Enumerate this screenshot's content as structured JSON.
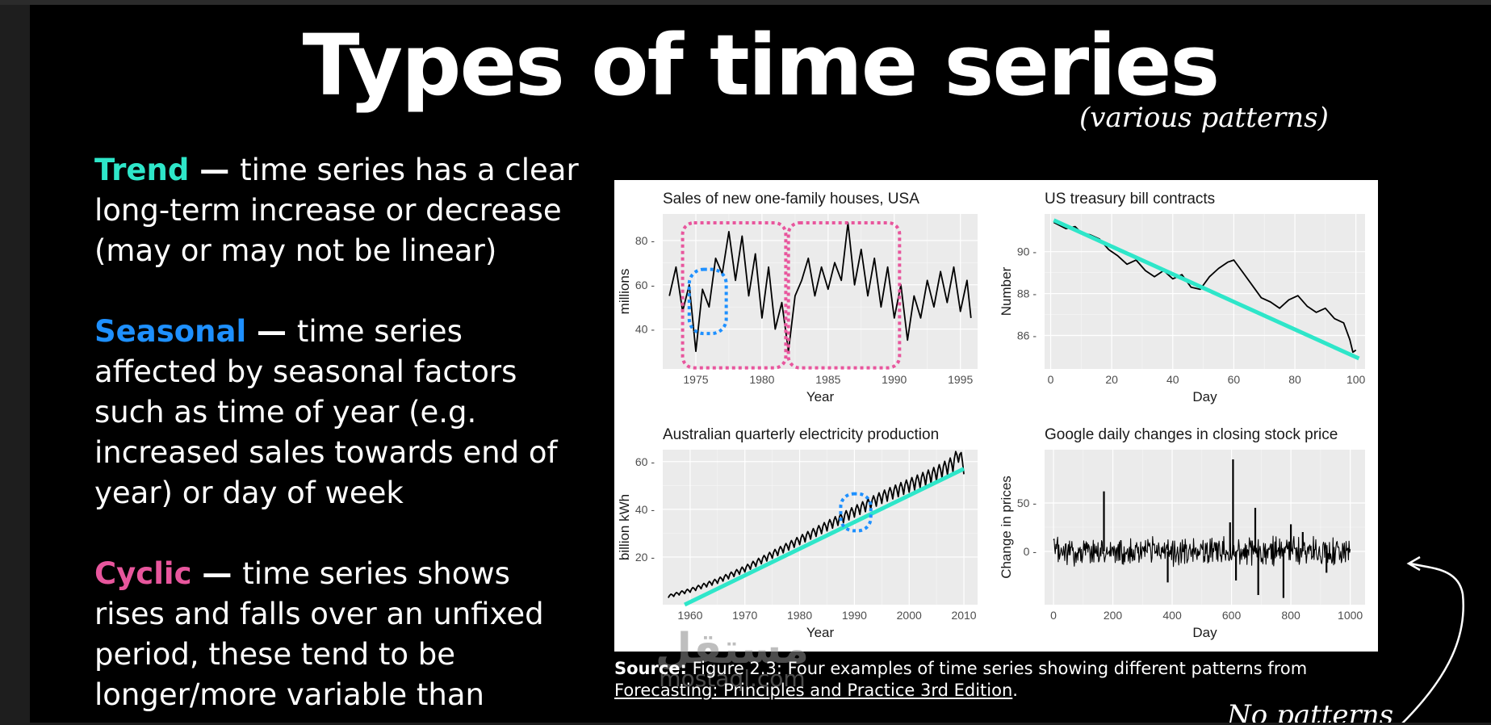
{
  "slide": {
    "title": "Types of time series",
    "subtitle": "(various patterns)",
    "note": "No patterns"
  },
  "text": {
    "trend": {
      "term": "Trend",
      "dash": " — ",
      "desc": "time series has a clear long-term increase or decrease (may or may not be linear)",
      "color": "#2ee6c9"
    },
    "seasonal": {
      "term": "Seasonal",
      "dash": " — ",
      "desc": "time series affected by seasonal factors such as time of year (e.g. increased sales towards end of year) or day of week",
      "color": "#1e90ff"
    },
    "cyclic": {
      "term": "Cyclic",
      "dash": " — ",
      "desc": "time series shows rises and falls over an unfixed period, these tend to be longer/more variable than",
      "color": "#e8569d"
    }
  },
  "caption": {
    "source_label": "Source:",
    "text": " Figure 2.3: Four examples of time series showing different patterns from ",
    "link": "Forecasting: Principles and Practice 3rd Edition",
    "end": "."
  },
  "watermark": {
    "arabic": "مستقل",
    "latin": "mostaql.com"
  },
  "colors": {
    "trend": "#2ee6c9",
    "seasonal": "#1e90ff",
    "cyclic": "#e8569d",
    "panel_bg": "#ebebeb"
  },
  "chart_data": [
    {
      "type": "line",
      "title": "Sales of new one-family houses, USA",
      "xlabel": "Year",
      "ylabel": "millions",
      "xlim": [
        1972.5,
        1996.3
      ],
      "ylim": [
        22,
        92
      ],
      "xticks": [
        1975,
        1980,
        1985,
        1990,
        1995
      ],
      "yticks": [
        40,
        60,
        80
      ],
      "series": [
        {
          "name": "sales",
          "x": [
            1973,
            1973.5,
            1974,
            1974.5,
            1975,
            1975.5,
            1976,
            1976.5,
            1977,
            1977.5,
            1978,
            1978.5,
            1979,
            1979.5,
            1980,
            1980.5,
            1981,
            1981.5,
            1982,
            1982.5,
            1983,
            1983.5,
            1984,
            1984.5,
            1985,
            1985.5,
            1986,
            1986.5,
            1987,
            1987.5,
            1988,
            1988.5,
            1989,
            1989.5,
            1990,
            1990.5,
            1991,
            1991.5,
            1992,
            1992.5,
            1993,
            1993.5,
            1994,
            1994.5,
            1995,
            1995.5,
            1995.8
          ],
          "values": [
            55,
            68,
            48,
            60,
            30,
            58,
            50,
            72,
            65,
            84,
            62,
            82,
            55,
            74,
            45,
            68,
            40,
            52,
            30,
            55,
            62,
            72,
            55,
            68,
            58,
            70,
            62,
            88,
            60,
            76,
            55,
            72,
            50,
            68,
            45,
            60,
            35,
            55,
            45,
            62,
            50,
            66,
            52,
            68,
            48,
            62,
            45
          ]
        }
      ],
      "annotations": [
        "seasonal region 1974-1977 (blue dotted)",
        "cyclic regions 1974-1982 and 1982-1990 (pink dotted)"
      ]
    },
    {
      "type": "line",
      "title": "US treasury bill contracts",
      "xlabel": "Day",
      "ylabel": "Number",
      "xlim": [
        -2,
        103
      ],
      "ylim": [
        84.4,
        91.8
      ],
      "xticks": [
        0,
        20,
        40,
        60,
        80,
        100
      ],
      "yticks": [
        86,
        88,
        90
      ],
      "series": [
        {
          "name": "contracts",
          "x": [
            1,
            5,
            8,
            10,
            13,
            16,
            19,
            22,
            25,
            28,
            31,
            34,
            37,
            40,
            43,
            46,
            49,
            52,
            55,
            58,
            60,
            63,
            66,
            69,
            72,
            75,
            78,
            81,
            84,
            87,
            90,
            93,
            96,
            98,
            99,
            100
          ],
          "values": [
            91.4,
            91.1,
            91.2,
            90.9,
            90.8,
            90.6,
            90.1,
            89.8,
            89.4,
            89.6,
            89.1,
            88.8,
            89.1,
            88.7,
            88.9,
            88.3,
            88.2,
            88.8,
            89.2,
            89.5,
            89.6,
            89.0,
            88.4,
            87.8,
            87.6,
            87.3,
            87.7,
            87.9,
            87.4,
            87.1,
            87.3,
            86.8,
            86.6,
            85.8,
            85.2,
            85.3
          ]
        },
        {
          "name": "trend",
          "x": [
            1,
            101
          ],
          "values": [
            91.5,
            84.9
          ]
        }
      ]
    },
    {
      "type": "line",
      "title": "Australian quarterly electricity production",
      "xlabel": "Year",
      "ylabel": "billion kWh",
      "xlim": [
        1955,
        2012.5
      ],
      "ylim": [
        0,
        65
      ],
      "xticks": [
        1960,
        1970,
        1980,
        1990,
        2000,
        2010
      ],
      "yticks": [
        20,
        40,
        60
      ],
      "series": [
        {
          "name": "production",
          "x": [
            1956,
            1960,
            1965,
            1970,
            1975,
            1980,
            1985,
            1990,
            1995,
            2000,
            2005,
            2008,
            2009,
            2010
          ],
          "values": [
            3.5,
            6,
            10,
            15,
            21,
            27,
            33,
            39,
            45,
            50,
            55,
            59,
            63,
            58
          ]
        },
        {
          "name": "trend",
          "x": [
            1959,
            2010
          ],
          "values": [
            0,
            57
          ]
        }
      ],
      "annotations": [
        "seasonal detail near 1990 (blue dotted)"
      ]
    },
    {
      "type": "line",
      "title": "Google daily changes in closing stock price",
      "xlabel": "Day",
      "ylabel": "Change in prices",
      "xlim": [
        -30,
        1050
      ],
      "ylim": [
        -55,
        105
      ],
      "xticks": [
        0,
        200,
        400,
        600,
        800,
        1000
      ],
      "yticks": [
        0,
        50
      ],
      "series": [
        {
          "name": "changes",
          "x": [
            170,
            385,
            595,
            605,
            615,
            680,
            690,
            775,
            800,
            840,
            920
          ],
          "values": [
            62,
            -32,
            30,
            95,
            -30,
            45,
            -45,
            -48,
            28,
            20,
            -22
          ]
        }
      ]
    }
  ]
}
